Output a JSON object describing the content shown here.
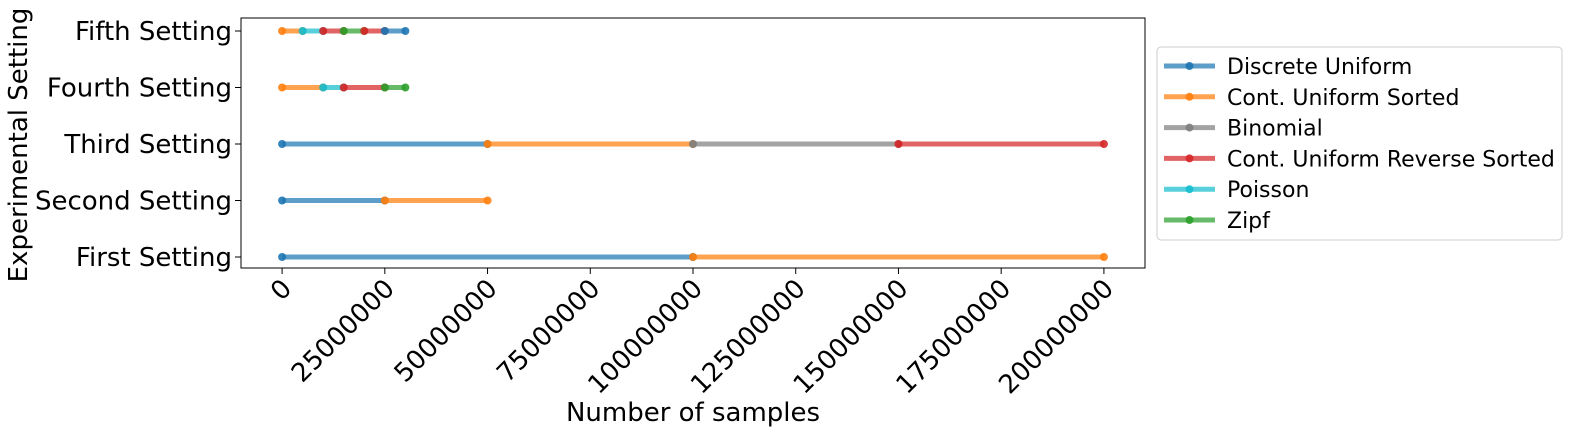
{
  "chart_data": {
    "type": "line",
    "title": "",
    "xlabel": "Number of samples",
    "ylabel": "Experimental Setting",
    "xlim": [
      -10000000,
      210000000
    ],
    "x_ticks": [
      0,
      25000000,
      50000000,
      75000000,
      100000000,
      125000000,
      150000000,
      175000000,
      200000000
    ],
    "x_tick_labels": [
      "0",
      "25000000",
      "50000000",
      "75000000",
      "100000000",
      "125000000",
      "150000000",
      "175000000",
      "200000000"
    ],
    "x_tick_rotation": 45,
    "categories": [
      "First Setting",
      "Second Setting",
      "Third Setting",
      "Fourth Setting",
      "Fifth Setting"
    ],
    "grid": false,
    "legend_position": "outside right",
    "legend": [
      {
        "name": "Discrete Uniform",
        "color": "#1f77b4"
      },
      {
        "name": "Cont. Uniform Sorted",
        "color": "#ff7f0e"
      },
      {
        "name": "Binomial",
        "color": "#7f7f7f"
      },
      {
        "name": "Cont. Uniform Reverse Sorted",
        "color": "#d62728"
      },
      {
        "name": "Poisson",
        "color": "#17becf"
      },
      {
        "name": "Zipf",
        "color": "#2ca02c"
      }
    ],
    "segments": [
      {
        "setting": "First Setting",
        "series": "Discrete Uniform",
        "start": 0,
        "end": 100000000
      },
      {
        "setting": "First Setting",
        "series": "Cont. Uniform Sorted",
        "start": 100000000,
        "end": 200000000
      },
      {
        "setting": "Second Setting",
        "series": "Discrete Uniform",
        "start": 0,
        "end": 25000000
      },
      {
        "setting": "Second Setting",
        "series": "Cont. Uniform Sorted",
        "start": 25000000,
        "end": 50000000
      },
      {
        "setting": "Third Setting",
        "series": "Discrete Uniform",
        "start": 0,
        "end": 50000000
      },
      {
        "setting": "Third Setting",
        "series": "Cont. Uniform Sorted",
        "start": 50000000,
        "end": 100000000
      },
      {
        "setting": "Third Setting",
        "series": "Binomial",
        "start": 100000000,
        "end": 150000000
      },
      {
        "setting": "Third Setting",
        "series": "Cont. Uniform Reverse Sorted",
        "start": 150000000,
        "end": 200000000
      },
      {
        "setting": "Fourth Setting",
        "series": "Cont. Uniform Sorted",
        "start": 0,
        "end": 10000000
      },
      {
        "setting": "Fourth Setting",
        "series": "Poisson",
        "start": 10000000,
        "end": 15000000
      },
      {
        "setting": "Fourth Setting",
        "series": "Cont. Uniform Reverse Sorted",
        "start": 15000000,
        "end": 25000000
      },
      {
        "setting": "Fourth Setting",
        "series": "Zipf",
        "start": 25000000,
        "end": 30000000
      },
      {
        "setting": "Fifth Setting",
        "series": "Cont. Uniform Sorted",
        "start": 0,
        "end": 5000000
      },
      {
        "setting": "Fifth Setting",
        "series": "Poisson",
        "start": 5000000,
        "end": 10000000
      },
      {
        "setting": "Fifth Setting",
        "series": "Cont. Uniform Reverse Sorted",
        "start": 10000000,
        "end": 15000000
      },
      {
        "setting": "Fifth Setting",
        "series": "Zipf",
        "start": 15000000,
        "end": 20000000
      },
      {
        "setting": "Fifth Setting",
        "series": "Cont. Uniform Reverse Sorted",
        "start": 20000000,
        "end": 25000000
      },
      {
        "setting": "Fifth Setting",
        "series": "Discrete Uniform",
        "start": 25000000,
        "end": 30000000
      }
    ]
  }
}
